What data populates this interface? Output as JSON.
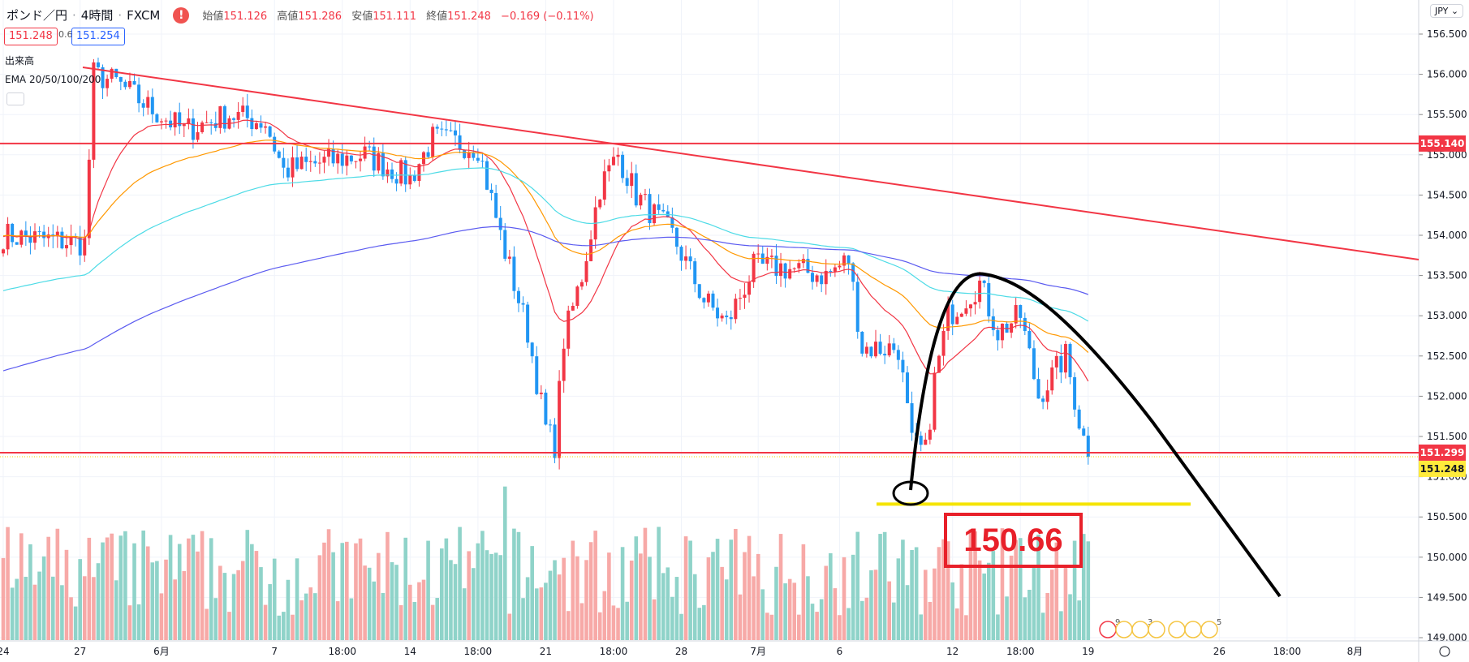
{
  "header": {
    "symbol": "ポンド／円",
    "interval": "4時間",
    "broker": "FXCM",
    "open_label": "始値",
    "open": "151.126",
    "high_label": "高値",
    "high": "151.286",
    "low_label": "安値",
    "low": "151.111",
    "close_label": "終値",
    "close": "151.248",
    "change": "−0.169 (−0.11%)",
    "sell": "151.248",
    "spread": "0.6",
    "buy": "151.254",
    "volume_label": "出来高",
    "ema_label": "EMA 20/50/100/200",
    "currency": "JPY ⌄"
  },
  "colors": {
    "up": "#f23645",
    "down": "#2196f3",
    "vol_up": "#f7a9a7",
    "vol_down": "#8fd3c9",
    "ema20": "#f23645",
    "ema50": "#ff9800",
    "ema100": "#4ddbe6",
    "ema200": "#5b5bf0"
  },
  "price_axis": {
    "max": 156.5,
    "min": 149.0,
    "ticks": [
      "156.500",
      "156.000",
      "155.500",
      "155.000",
      "154.500",
      "154.000",
      "153.500",
      "153.000",
      "152.500",
      "152.000",
      "151.500",
      "151.000",
      "150.500",
      "150.000",
      "149.500",
      "149.000"
    ]
  },
  "time_axis": [
    {
      "label": "24",
      "i": 0
    },
    {
      "label": "27",
      "i": 17
    },
    {
      "label": "6月",
      "i": 35
    },
    {
      "label": "7",
      "i": 60
    },
    {
      "label": "18:00",
      "i": 75
    },
    {
      "label": "14",
      "i": 90
    },
    {
      "label": "18:00",
      "i": 105
    },
    {
      "label": "21",
      "i": 120
    },
    {
      "label": "18:00",
      "i": 135
    },
    {
      "label": "28",
      "i": 150
    },
    {
      "label": "7月",
      "i": 167
    },
    {
      "label": "6",
      "i": 185
    },
    {
      "label": "12",
      "i": 210
    },
    {
      "label": "18:00",
      "i": 225
    },
    {
      "label": "19",
      "i": 240
    },
    {
      "label": "26",
      "i": 269
    },
    {
      "label": "18:00",
      "i": 284
    },
    {
      "label": "8月",
      "i": 299
    }
  ],
  "price_labels": [
    {
      "text": "155.140",
      "price": 155.14,
      "style": "red"
    },
    {
      "text": "151.299",
      "price": 151.299,
      "style": "red"
    },
    {
      "text": "151.248",
      "price": 151.248,
      "style": "yellow"
    }
  ],
  "chart_data": {
    "type": "candlestick",
    "candle_count": 241,
    "anchors": [
      [
        0,
        154.0
      ],
      [
        18,
        153.9
      ],
      [
        20,
        156.0
      ],
      [
        25,
        155.9
      ],
      [
        32,
        155.6
      ],
      [
        40,
        155.3
      ],
      [
        50,
        155.5
      ],
      [
        58,
        155.4
      ],
      [
        62,
        154.8
      ],
      [
        70,
        154.9
      ],
      [
        80,
        155.0
      ],
      [
        90,
        154.7
      ],
      [
        95,
        155.2
      ],
      [
        105,
        155.1
      ],
      [
        110,
        154.0
      ],
      [
        116,
        152.8
      ],
      [
        120,
        151.6
      ],
      [
        122,
        151.4
      ],
      [
        124,
        152.7
      ],
      [
        128,
        153.5
      ],
      [
        132,
        154.6
      ],
      [
        136,
        155.0
      ],
      [
        140,
        154.5
      ],
      [
        148,
        154.0
      ],
      [
        155,
        153.2
      ],
      [
        160,
        152.9
      ],
      [
        166,
        153.6
      ],
      [
        172,
        153.6
      ],
      [
        182,
        153.5
      ],
      [
        187,
        153.7
      ],
      [
        190,
        152.6
      ],
      [
        198,
        152.6
      ],
      [
        201,
        151.4
      ],
      [
        204,
        151.3
      ],
      [
        206,
        152.2
      ],
      [
        209,
        153.0
      ],
      [
        216,
        153.4
      ],
      [
        220,
        152.8
      ],
      [
        225,
        153.0
      ],
      [
        229,
        152.0
      ],
      [
        235,
        152.5
      ],
      [
        238,
        151.7
      ],
      [
        240,
        151.25
      ]
    ],
    "ema_seed": {
      "ema20": 154.0,
      "ema50": 154.0,
      "ema100": 153.3,
      "ema200": 152.3
    }
  },
  "drawings": {
    "target_value": "150.66",
    "target_price": 150.66,
    "h_line_1": 155.14,
    "h_line_2": 151.299
  },
  "events": [
    {
      "count": "9"
    },
    {
      "count": "3"
    },
    {
      "count": "5"
    }
  ]
}
